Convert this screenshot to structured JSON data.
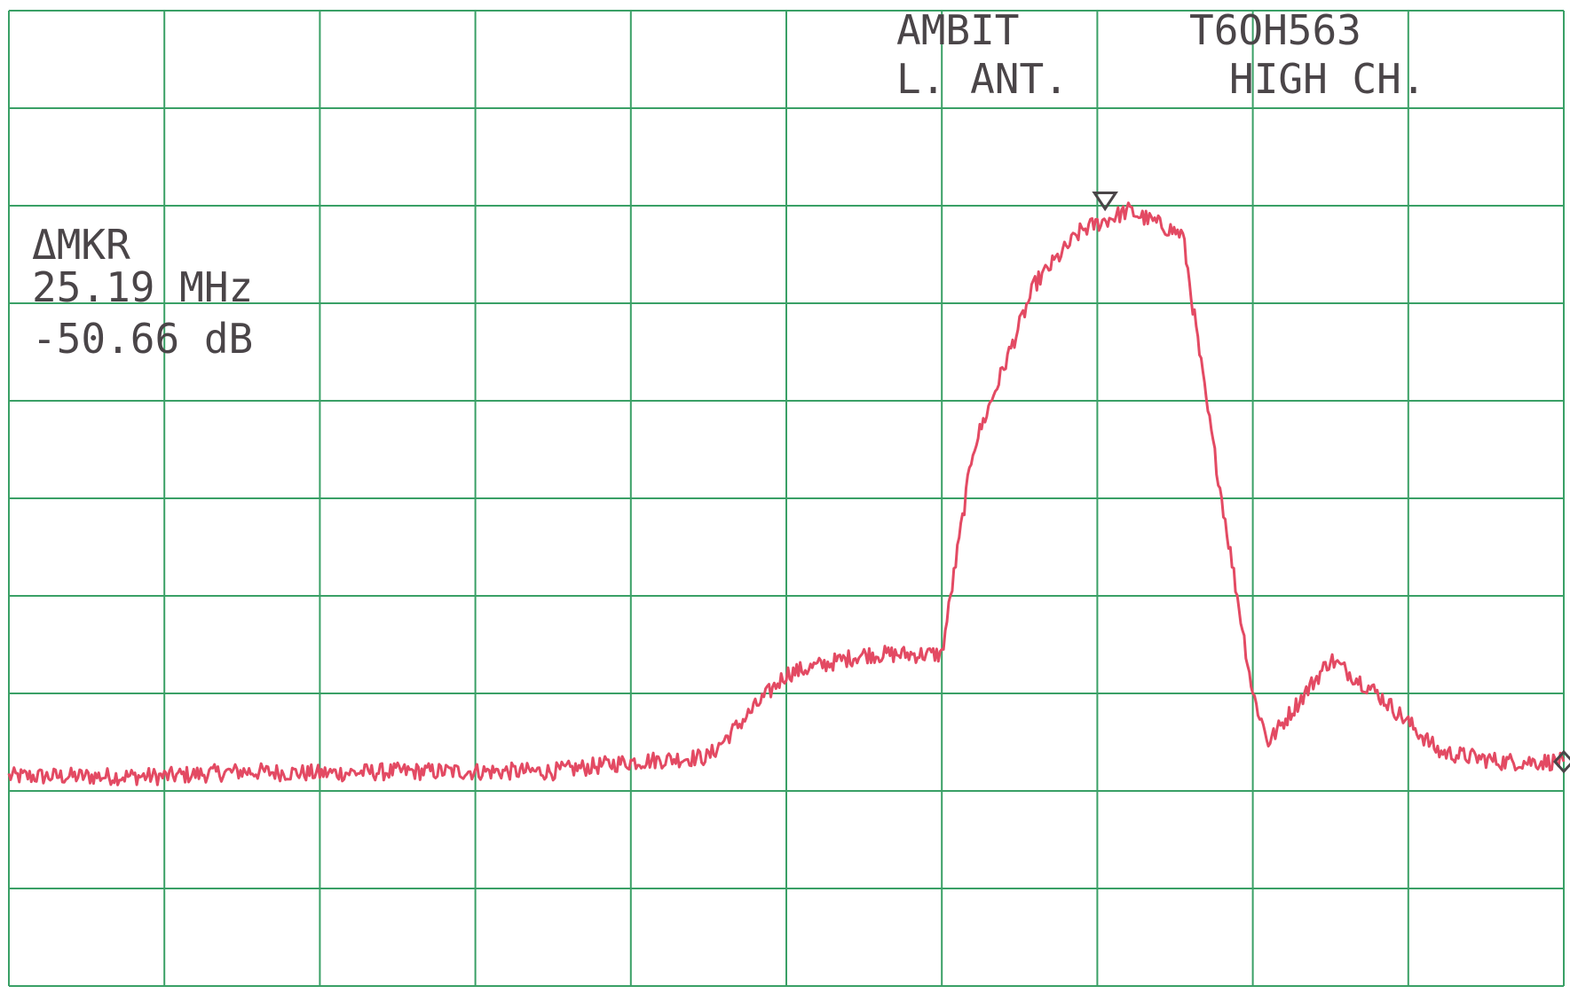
{
  "header": {
    "line1_left": "AMBIT",
    "line1_right": "T6OH563",
    "line2_left": "L. ANT.",
    "line2_right": "HIGH CH."
  },
  "marker_readout": {
    "label": "ΔMKR",
    "frequency": "25.19 MHz",
    "level": "-50.66 dB"
  },
  "colors": {
    "grid": "#3aa066",
    "trace": "#e34a63",
    "text": "#4a4548",
    "background": "#ffffff"
  },
  "chart_data": {
    "type": "line",
    "title": "",
    "xlabel": "",
    "ylabel": "",
    "grid": true,
    "x_divisions": 10,
    "y_divisions": 10,
    "xlim": [
      0,
      10
    ],
    "ylim": [
      0,
      10
    ],
    "trace": {
      "x": [
        0,
        0.5,
        1.0,
        1.5,
        2.0,
        2.5,
        3.0,
        3.5,
        4.0,
        4.5,
        5.0,
        5.5,
        6.0,
        6.2,
        6.6,
        6.9,
        7.2,
        7.55,
        7.7,
        8.0,
        8.1,
        8.5,
        8.8,
        9.2,
        9.6,
        10.0
      ],
      "y": [
        2.15,
        2.15,
        2.15,
        2.2,
        2.18,
        2.2,
        2.2,
        2.2,
        2.3,
        2.35,
        3.2,
        3.4,
        3.4,
        5.5,
        7.2,
        7.75,
        7.95,
        7.7,
        6.0,
        3.0,
        2.5,
        3.35,
        3.0,
        2.4,
        2.3,
        2.3
      ]
    },
    "markers": [
      {
        "type": "reference",
        "x": 7.05,
        "y": 7.95
      },
      {
        "type": "delta",
        "x": 10.0,
        "y": 2.3
      }
    ]
  }
}
